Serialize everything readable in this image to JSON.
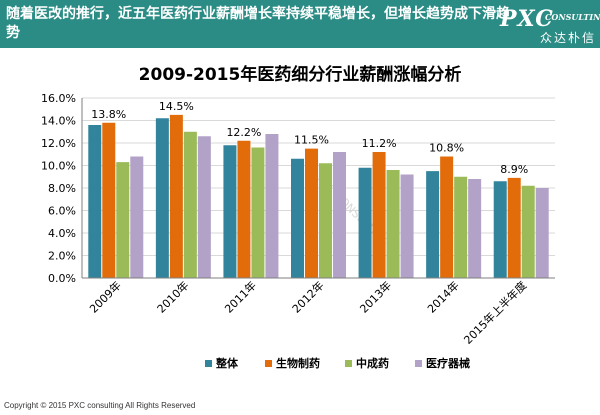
{
  "header": {
    "title": "随着医改的推行，近五年医药行业薪酬增长率持续平稳增长，但增长趋势成下滑趋势",
    "logo_main": "PXC",
    "logo_sub": "CONSULTING",
    "logo_cn": "众达朴信"
  },
  "footer": {
    "copyright": "Copyright © 2015  PXC consulting All Rights Reserved"
  },
  "watermark": "PXC CONSULTING",
  "chart_data": {
    "type": "bar",
    "title": "2009-2015年医药细分行业薪酬涨幅分析",
    "categories": [
      "2009年",
      "2010年",
      "2011年",
      "2012年",
      "2013年",
      "2014年",
      "2015年上半年度"
    ],
    "series": [
      {
        "name": "整体",
        "color": "#31849b",
        "values": [
          13.6,
          14.2,
          11.8,
          10.6,
          9.8,
          9.5,
          8.6
        ]
      },
      {
        "name": "生物制药",
        "color": "#e36c0a",
        "values": [
          13.8,
          14.5,
          12.2,
          11.5,
          11.2,
          10.8,
          8.9
        ]
      },
      {
        "name": "中成药",
        "color": "#9bbb59",
        "values": [
          10.3,
          13.0,
          11.6,
          10.2,
          9.6,
          9.0,
          8.2
        ]
      },
      {
        "name": "医疗器械",
        "color": "#b3a2c7",
        "values": [
          10.8,
          12.6,
          12.8,
          11.2,
          9.2,
          8.8,
          8.0
        ]
      }
    ],
    "data_labels": [
      "13.8%",
      "14.5%",
      "12.2%",
      "11.5%",
      "11.2%",
      "10.8%",
      "8.9%"
    ],
    "yticks": [
      "0.0%",
      "2.0%",
      "4.0%",
      "6.0%",
      "8.0%",
      "10.0%",
      "12.0%",
      "14.0%",
      "16.0%"
    ],
    "ylim": [
      0,
      16
    ],
    "grid": true,
    "legend": "bottom"
  }
}
